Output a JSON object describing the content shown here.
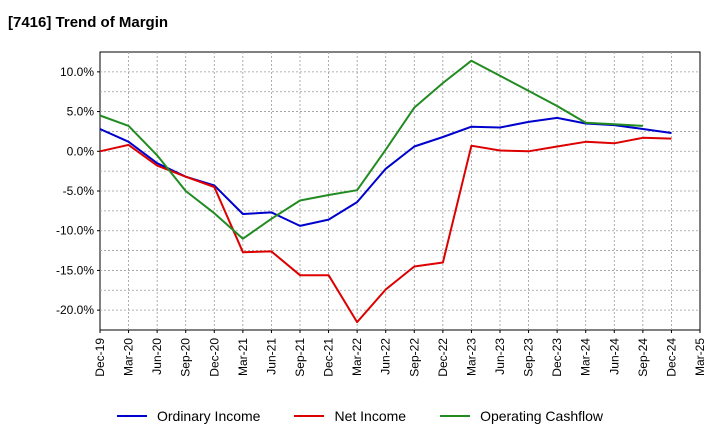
{
  "title": "[7416]  Trend of Margin",
  "chart_data": {
    "type": "line",
    "title": "[7416]  Trend of Margin",
    "xlabel": "",
    "ylabel": "",
    "categories": [
      "Dec-19",
      "Mar-20",
      "Jun-20",
      "Sep-20",
      "Dec-20",
      "Mar-21",
      "Jun-21",
      "Sep-21",
      "Dec-21",
      "Mar-22",
      "Jun-22",
      "Sep-22",
      "Dec-22",
      "Mar-23",
      "Jun-23",
      "Sep-23",
      "Dec-23",
      "Mar-24",
      "Jun-24",
      "Sep-24",
      "Dec-24",
      "Mar-25"
    ],
    "yticks": [
      "10.0%",
      "5.0%",
      "0.0%",
      "-5.0%",
      "-10.0%",
      "-15.0%",
      "-20.0%"
    ],
    "ytick_values": [
      10,
      5,
      0,
      -5,
      -10,
      -15,
      -20
    ],
    "ylim": [
      -22.5,
      12.5
    ],
    "grid": true,
    "legend_position": "bottom",
    "series": [
      {
        "name": "Ordinary Income",
        "color": "#0000cc",
        "values": [
          2.8,
          1.2,
          -1.5,
          -3.2,
          -4.3,
          -7.9,
          -7.7,
          -9.4,
          -8.6,
          -6.4,
          -2.2,
          0.6,
          1.8,
          3.1,
          3.0,
          3.7,
          4.2,
          3.5,
          3.3,
          2.8,
          2.3,
          null
        ]
      },
      {
        "name": "Net Income",
        "color": "#dd0000",
        "values": [
          0.0,
          0.8,
          -1.8,
          -3.2,
          -4.5,
          -12.7,
          -12.6,
          -15.6,
          -15.6,
          -21.5,
          -17.4,
          -14.5,
          -14.0,
          0.7,
          0.1,
          0.0,
          0.6,
          1.2,
          1.0,
          1.7,
          1.6,
          null
        ]
      },
      {
        "name": "Operating Cashflow",
        "color": "#228b22",
        "values": [
          4.5,
          3.2,
          -0.5,
          -5.0,
          -7.8,
          -11.0,
          -8.5,
          -6.2,
          -5.5,
          -4.9,
          0.2,
          5.5,
          8.6,
          11.4,
          9.5,
          7.6,
          5.7,
          3.6,
          3.4,
          3.2,
          null,
          null
        ]
      }
    ]
  }
}
